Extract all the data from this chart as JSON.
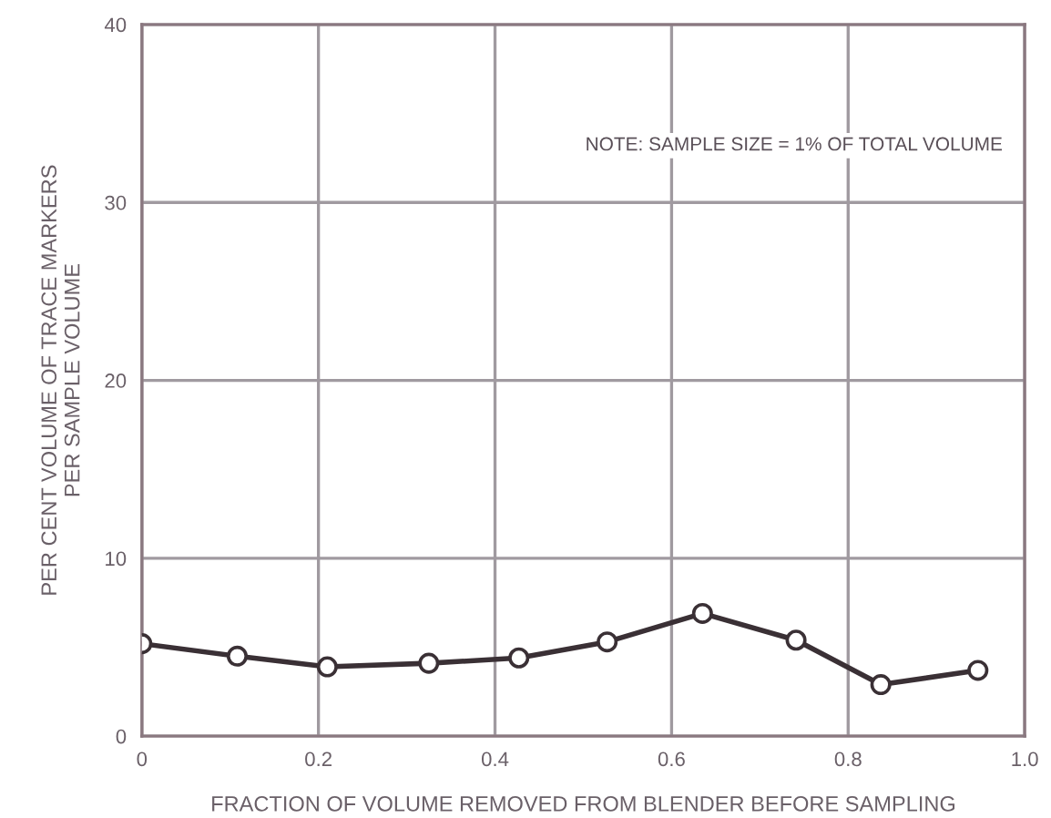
{
  "chart_data": {
    "type": "line",
    "xlabel": "FRACTION OF VOLUME REMOVED FROM BLENDER BEFORE SAMPLING",
    "ylabel": "PER CENT VOLUME OF TRACE MARKERS\nPER SAMPLE VOLUME",
    "annotations": [
      "NOTE: SAMPLE SIZE = 1% OF TOTAL VOLUME"
    ],
    "series": [
      {
        "color": "#3a3035",
        "x": [
          0.0,
          0.108,
          0.21,
          0.325,
          0.427,
          0.527,
          0.635,
          0.741,
          0.837,
          0.947
        ],
        "values": [
          5.2,
          4.5,
          3.9,
          4.1,
          4.4,
          5.3,
          6.9,
          5.4,
          2.9,
          3.7
        ]
      }
    ],
    "xlim": [
      0,
      1.0
    ],
    "xticks": [
      0,
      {
        "value": 0.2,
        "label": "0.2"
      },
      {
        "value": 0.4,
        "label": "0.4"
      },
      {
        "value": 0.6,
        "label": "0.6"
      },
      {
        "value": 0.8,
        "label": "0.8"
      },
      {
        "value": 1.0,
        "label": "1.0"
      }
    ],
    "ylim": [
      0,
      40
    ],
    "yticks": [
      0,
      10,
      20,
      30,
      40
    ],
    "grid": true,
    "marker": "circle",
    "line_style": "solid"
  }
}
